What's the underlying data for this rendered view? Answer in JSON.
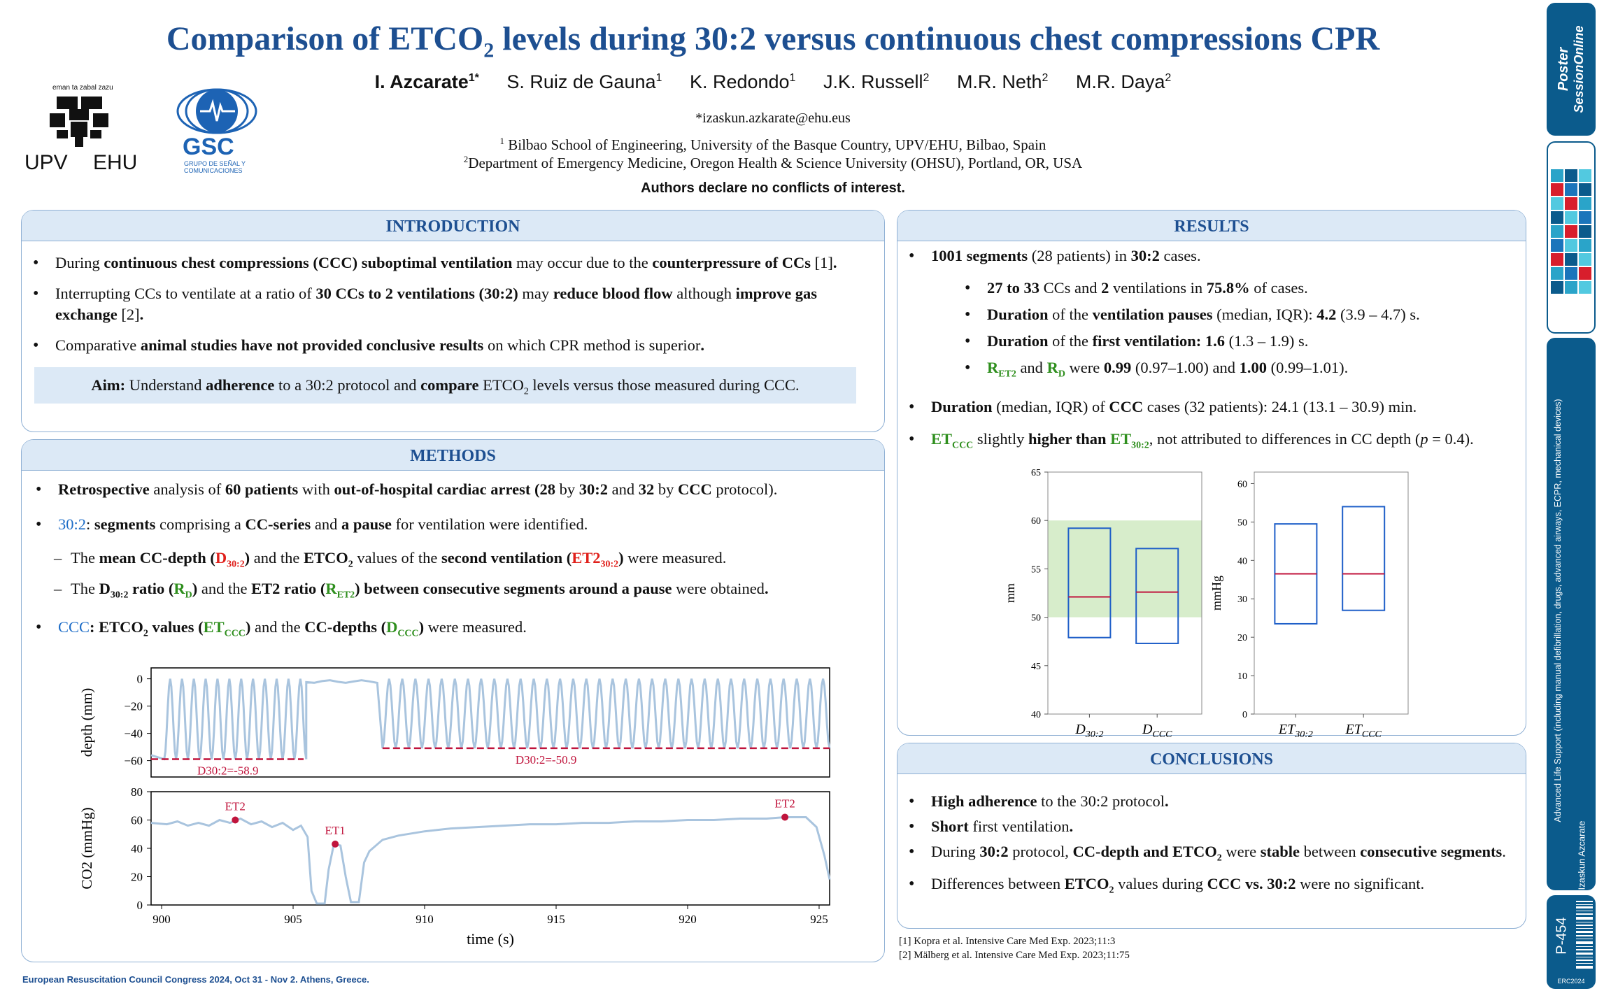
{
  "header": {
    "title_part1": "Comparison of ETCO",
    "title_sub": "2",
    "title_part2": " levels during 30:2 versus continuous chest compressions CPR",
    "authors": [
      {
        "name": "I. Azcarate",
        "sup": "1*"
      },
      {
        "name": "S. Ruiz de Gauna",
        "sup": "1"
      },
      {
        "name": "K. Redondo",
        "sup": "1"
      },
      {
        "name": "J.K. Russell",
        "sup": "2"
      },
      {
        "name": "M.R. Neth",
        "sup": "2"
      },
      {
        "name": "M.R. Daya",
        "sup": "2"
      }
    ],
    "email": "*izaskun.azkarate@ehu.eus",
    "affiliation1_sup": "1",
    "affiliation1": " Bilbao School of Engineering, University of the Basque Country, UPV/EHU, Bilbao, Spain",
    "affiliation2_sup": "2",
    "affiliation2": "Department of Emergency Medicine, Oregon Health & Science University (OHSU), Portland, OR, USA",
    "conflicts": "Authors declare no conflicts of interest."
  },
  "logos": {
    "upv_motto": "eman ta zabal zazu",
    "upv_left": "UPV",
    "upv_right": "EHU",
    "gsc_name": "GSC",
    "gsc_line1": "GRUPO DE SEÑAL Y",
    "gsc_line2": "COMUNICACIONES"
  },
  "introduction": {
    "heading": "INTRODUCTION",
    "b1": [
      "During ",
      "continuous chest compressions (CCC) suboptimal ventilation",
      " may occur due to the ",
      "counterpressure of CCs",
      " [1]",
      "."
    ],
    "b2": [
      "Interrupting CCs to ventilate at a ratio of ",
      "30 CCs to 2 ventilations (30:2)",
      " may ",
      "reduce blood flow",
      " although ",
      "improve gas exchange",
      " [2]",
      "."
    ],
    "b3": [
      "Comparative ",
      "animal studies have not provided conclusive results",
      " on which CPR method is superior",
      "."
    ],
    "aim": [
      "Aim:",
      " Understand ",
      "adherence",
      " to a 30:2 protocol and ",
      "compare",
      " ETCO",
      "2",
      " levels versus those measured during CCC."
    ]
  },
  "methods": {
    "heading": "METHODS",
    "b1": [
      "Retrospective",
      " analysis of ",
      "60 patients",
      " with ",
      "out-of-hospital cardiac arrest (28",
      " by ",
      "30:2",
      " and ",
      "32",
      " by ",
      "CCC",
      " protocol)."
    ],
    "b2": [
      "30:2",
      ": ",
      "segments",
      " comprising a ",
      "CC-series",
      " and ",
      "a pause",
      " for ventilation were identified."
    ],
    "d1": [
      "The ",
      "mean CC-depth (",
      "D",
      "30:2",
      ")",
      " and the ",
      "ETCO",
      "2",
      " values of the ",
      "second ventilation (",
      "ET2",
      "30:2",
      ")",
      " were measured."
    ],
    "d2": [
      "The ",
      "D",
      "30:2",
      " ratio (",
      "R",
      "D",
      ")",
      " and the ",
      "ET2 ratio (",
      "R",
      "ET2",
      ") between consecutive segments around a pause",
      " were obtained",
      "."
    ],
    "b3": [
      "CCC",
      ": ETCO",
      "2",
      " values (",
      "ET",
      "CCC",
      ")",
      " and the ",
      "CC-depths (",
      "D",
      "CCC",
      ")",
      " were measured."
    ]
  },
  "results": {
    "heading": "RESULTS",
    "b1": [
      "1001 segments",
      " (28 patients) in ",
      "30:2",
      " cases."
    ],
    "s1": [
      "27 to 33",
      " CCs and ",
      "2",
      " ventilations in ",
      "75.8%",
      " of cases."
    ],
    "s2": [
      "Duration",
      " of the ",
      "ventilation pauses",
      " (median, IQR): ",
      "4.2",
      " (3.9 – 4.7) s."
    ],
    "s3": [
      "Duration",
      " of the ",
      "first ventilation: 1.6",
      " (1.3 – 1.9) s."
    ],
    "s4": [
      "R",
      "ET2",
      " and ",
      "R",
      "D",
      " were ",
      "0.99",
      " (0.97–1.00) and ",
      "1.00",
      " (0.99–1.01)."
    ],
    "b2": [
      "Duration",
      " (median, IQR) of ",
      "CCC",
      " cases (32 patients): 24.1 (13.1 – 30.9) min."
    ],
    "b3": [
      "ET",
      "CCC",
      " slightly ",
      "higher than",
      " ",
      "ET",
      "30:2",
      ", not attributed to differences in CC depth (",
      "p",
      " = 0.4)."
    ]
  },
  "conclusions": {
    "heading": "CONCLUSIONS",
    "b1": [
      "High adherence",
      " to the 30:2 protocol",
      "."
    ],
    "b2": [
      "Short",
      " first ventilation",
      "."
    ],
    "b3": [
      "During ",
      "30:2",
      " protocol, ",
      "CC-depth and ETCO",
      "2",
      " were ",
      "stable",
      " between ",
      "consecutive segments",
      "."
    ],
    "b4": [
      "Differences between ",
      "ETCO",
      "2",
      " values during ",
      "CCC vs. 30:2",
      " were no significant."
    ]
  },
  "references": {
    "r1": "[1] Kopra et al. Intensive Care Med Exp. 2023;11:3",
    "r2": "[2]  Mälberg et al. Intensive Care Med Exp. 2023;11:75"
  },
  "footer": "European Resuscitation Council Congress 2024, Oct 31 - Nov 2. Athens, Greece.",
  "sidebar": {
    "brand_line1": "Poster",
    "brand_line2": "SessionOnline",
    "topic": "Advanced Life Support (including manual defibrillation, drugs, advanced airways, ECPR, mechanical devices)",
    "author": "Izaskun Azcarate",
    "poster_id": "P-454",
    "event": "ERC2024",
    "accent": "#0b5b8c"
  },
  "colors": {
    "primary_blue": "#1d4f91",
    "panel_fill": "#dce9f6",
    "green": "#2f8f1e",
    "red": "#e0201b",
    "trace": "#a9c4de",
    "marker": "#c0143c"
  },
  "chart_data": [
    {
      "type": "line",
      "ylabel": "depth (mm)",
      "yticks": [
        0,
        -20,
        -40,
        -60
      ],
      "ylim": [
        -72,
        8
      ],
      "xlim": [
        899.6,
        925.4
      ],
      "annotations": [
        {
          "label": "D30:2=-58.9",
          "x_start": 899.6,
          "x_end": 905.4,
          "y": -58.9
        },
        {
          "label": "D30:2=-50.9",
          "x_start": 908.4,
          "x_end": 925.4,
          "y": -50.9
        }
      ],
      "series": [
        {
          "segment": "first compression series",
          "x_start": 900.1,
          "x_end": 905.5,
          "cycles": 12,
          "trough": -58.9
        },
        {
          "segment": "pause",
          "x_start": 905.5,
          "x_end": 908.4,
          "value": 0
        },
        {
          "segment": "second compression series",
          "x_start": 908.4,
          "x_end": 925.4,
          "cycles": 34,
          "trough": -50.9
        }
      ]
    },
    {
      "type": "line",
      "ylabel": "CO2 (mmHg)",
      "xlabel": "time (s)",
      "xticks": [
        900,
        905,
        910,
        915,
        920,
        925
      ],
      "yticks": [
        0,
        20,
        40,
        60,
        80
      ],
      "xlim": [
        899.6,
        925.4
      ],
      "ylim": [
        0,
        80
      ],
      "points": [
        {
          "label": "ET2",
          "x": 902.8,
          "y": 60
        },
        {
          "label": "ET1",
          "x": 906.6,
          "y": 43
        },
        {
          "label": "ET2",
          "x": 923.7,
          "y": 62
        }
      ]
    },
    {
      "type": "box",
      "ylabel": "mm",
      "ylim": [
        40,
        65
      ],
      "yticks": [
        40,
        45,
        50,
        55,
        60,
        65
      ],
      "categories": [
        "D30:2",
        "DCCC"
      ],
      "boxes": [
        {
          "q1": 47.9,
          "median": 52.1,
          "q3": 59.2
        },
        {
          "q1": 47.3,
          "median": 52.6,
          "q3": 57.1
        }
      ],
      "shaded_band": [
        50,
        60
      ]
    },
    {
      "type": "box",
      "ylabel": "mmHg",
      "ylim": [
        0,
        63
      ],
      "yticks": [
        0,
        10,
        20,
        30,
        40,
        50,
        60
      ],
      "categories": [
        "ET30:2",
        "ETCCC"
      ],
      "boxes": [
        {
          "q1": 23.5,
          "median": 36.5,
          "q3": 49.5
        },
        {
          "q1": 27.0,
          "median": 36.5,
          "q3": 54.0
        }
      ]
    }
  ]
}
